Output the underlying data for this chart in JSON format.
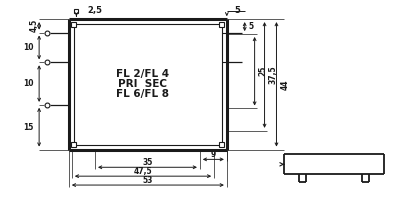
{
  "bg_color": "#ffffff",
  "line_color": "#1a1a1a",
  "text_color": "#1a1a1a",
  "fig_width": 4.0,
  "fig_height": 2.21,
  "dpi": 100,
  "label_FL2FL4": "FL 2/FL 4",
  "label_PRI_SEC": "PRI  SEC",
  "label_FL6FL8": "FL 6/FL 8",
  "dim_2p5": "2,5",
  "dim_5top": "5",
  "dim_4p5": "4,5",
  "dim_10a": "10",
  "dim_10b": "10",
  "dim_15": "15",
  "dim_5r": "5",
  "dim_25": "25",
  "dim_37p5": "37,5",
  "dim_44": "44",
  "dim_9": "9",
  "dim_35": "35",
  "dim_47p5": "47,5",
  "dim_53": "53"
}
